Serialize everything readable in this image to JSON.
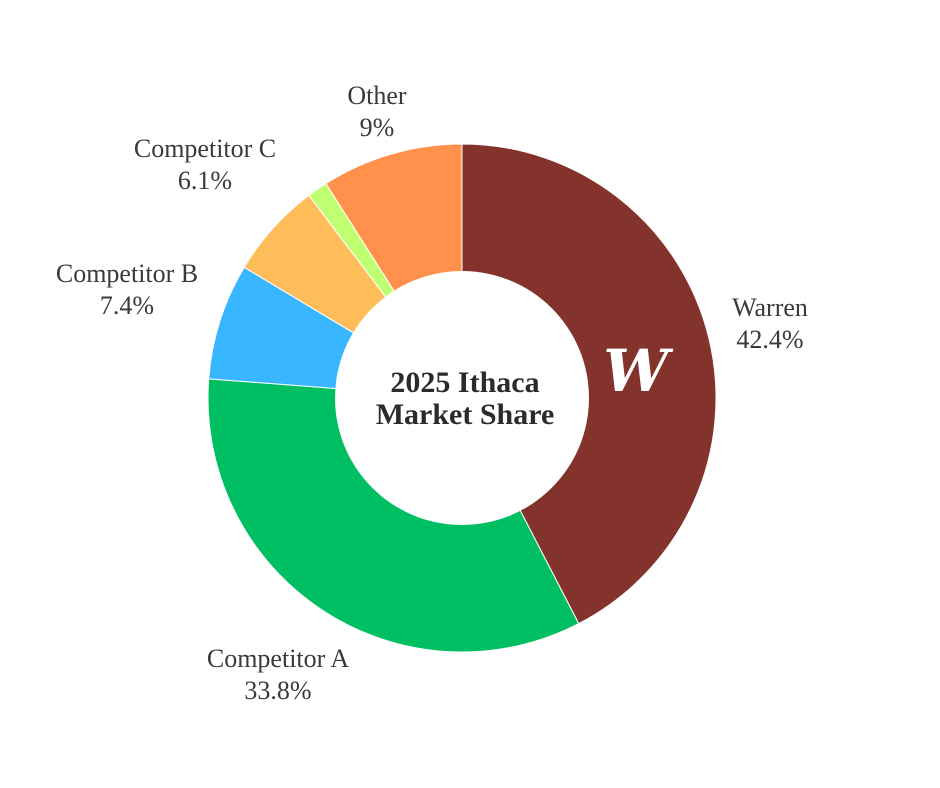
{
  "chart_data": {
    "type": "pie",
    "style": "donut",
    "title_lines": [
      "2025 Ithaca",
      "Market Share"
    ],
    "slices": [
      {
        "label": "Warren",
        "value": 42.4,
        "value_label": "42.4%",
        "color": "#83332c"
      },
      {
        "label": "Competitor A",
        "value": 33.8,
        "value_label": "33.8%",
        "color": "#00bf63"
      },
      {
        "label": "Competitor B",
        "value": 7.4,
        "value_label": "7.4%",
        "color": "#38b6ff"
      },
      {
        "label": "Competitor C",
        "value": 6.1,
        "value_label": "6.1%",
        "color": "#ffbd59"
      },
      {
        "label": "",
        "value": 1.3,
        "value_label": "",
        "color": "#c1ff72"
      },
      {
        "label": "Other",
        "value": 9,
        "value_label": "9%",
        "color": "#ff914d"
      }
    ],
    "logo": {
      "text": "W",
      "on_slice": "Warren"
    }
  }
}
